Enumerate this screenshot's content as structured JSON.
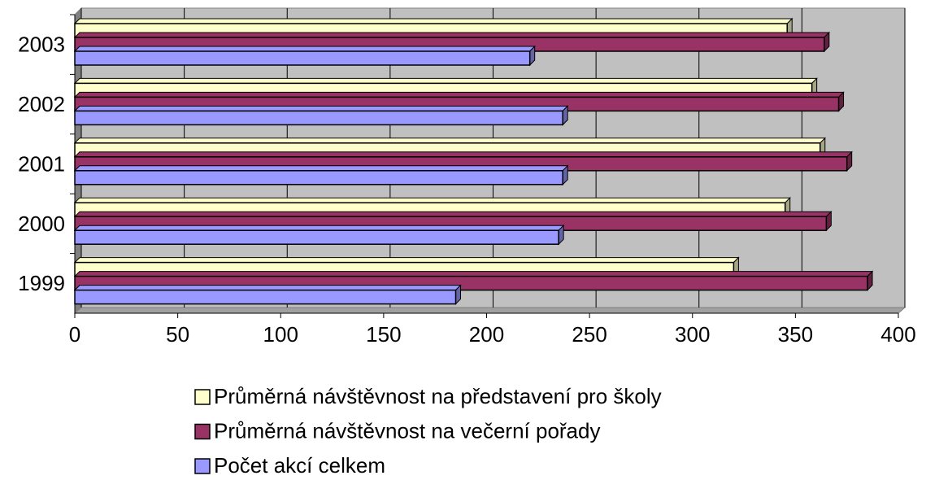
{
  "chart_data": {
    "type": "bar",
    "orientation": "horizontal",
    "categories": [
      "1999",
      "2000",
      "2001",
      "2002",
      "2003"
    ],
    "series": [
      {
        "name": "Průměrná návštěvnost na představení pro školy",
        "color": "#ffffcc",
        "values": [
          320,
          345,
          362,
          358,
          346
        ]
      },
      {
        "name": "Průměrná návštěvnost na večerní pořady",
        "color": "#993366",
        "values": [
          385,
          365,
          375,
          371,
          364
        ]
      },
      {
        "name": "Počet akcí celkem",
        "color": "#9999ff",
        "values": [
          185,
          235,
          237,
          237,
          221
        ]
      }
    ],
    "xlim": [
      0,
      400
    ],
    "xticks": [
      0,
      50,
      100,
      150,
      200,
      250,
      300,
      350,
      400
    ],
    "grid": true
  }
}
